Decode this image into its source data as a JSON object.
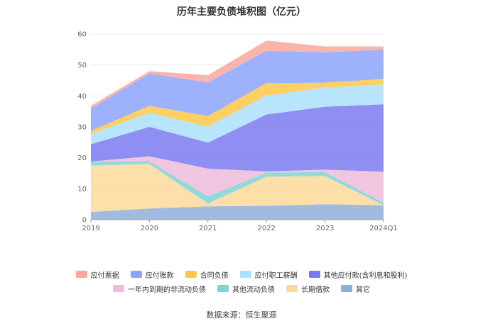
{
  "chart_data": {
    "type": "area",
    "stacked": true,
    "title": "历年主要负债堆积图（亿元）",
    "x": [
      "2019",
      "2020",
      "2021",
      "2022",
      "2023",
      "2024Q1"
    ],
    "ylim": [
      0,
      60
    ],
    "yticks": [
      0,
      10,
      20,
      30,
      40,
      50,
      60
    ],
    "grid": true,
    "legend_position": "bottom",
    "series": [
      {
        "name": "其它",
        "color": "#90aedb",
        "values": [
          2.5,
          3.6,
          4.3,
          4.5,
          5.0,
          4.7
        ]
      },
      {
        "name": "长期借款",
        "color": "#fcd99a",
        "values": [
          15.0,
          14.4,
          0.9,
          9.4,
          9.1,
          0.0
        ]
      },
      {
        "name": "其他流动负债",
        "color": "#7fd2d6",
        "values": [
          1.3,
          0.9,
          2.3,
          1.3,
          1.3,
          0.8
        ]
      },
      {
        "name": "一年内到期的非流动负债",
        "color": "#edbbdb",
        "values": [
          0.0,
          1.6,
          9.0,
          0.4,
          0.8,
          10.0
        ]
      },
      {
        "name": "其他应付款(含利息和股利)",
        "color": "#7b7af0",
        "values": [
          5.6,
          9.5,
          8.4,
          18.4,
          20.3,
          21.8
        ]
      },
      {
        "name": "应付职工薪酬",
        "color": "#ace1fb",
        "values": [
          3.3,
          4.5,
          5.2,
          6.1,
          6.2,
          6.4
        ]
      },
      {
        "name": "合同负债",
        "color": "#fdc84a",
        "values": [
          1.0,
          2.3,
          3.4,
          4.0,
          1.6,
          1.8
        ]
      },
      {
        "name": "应付账款",
        "color": "#8ca3fd",
        "values": [
          7.2,
          10.5,
          10.8,
          10.5,
          9.8,
          9.4
        ]
      },
      {
        "name": "应付票据",
        "color": "#f8a79c",
        "values": [
          0.9,
          0.7,
          2.4,
          3.3,
          1.9,
          1.1
        ]
      }
    ]
  },
  "legend": {
    "rows": [
      [
        {
          "label": "应付票据",
          "color": "#f8a79c"
        },
        {
          "label": "应付账款",
          "color": "#8ca3fd"
        },
        {
          "label": "合同负债",
          "color": "#fdc84a"
        },
        {
          "label": "应付职工薪酬",
          "color": "#ace1fb"
        },
        {
          "label": "其他应付款(含利息和股利)",
          "color": "#7b7af0"
        }
      ],
      [
        {
          "label": "一年内到期的非流动负债",
          "color": "#edbbdb"
        },
        {
          "label": "其他流动负债",
          "color": "#7fd2d6"
        },
        {
          "label": "长期借款",
          "color": "#fcd99a"
        },
        {
          "label": "其它",
          "color": "#90aedb"
        }
      ]
    ]
  },
  "source": "数据来源：恒生聚源"
}
